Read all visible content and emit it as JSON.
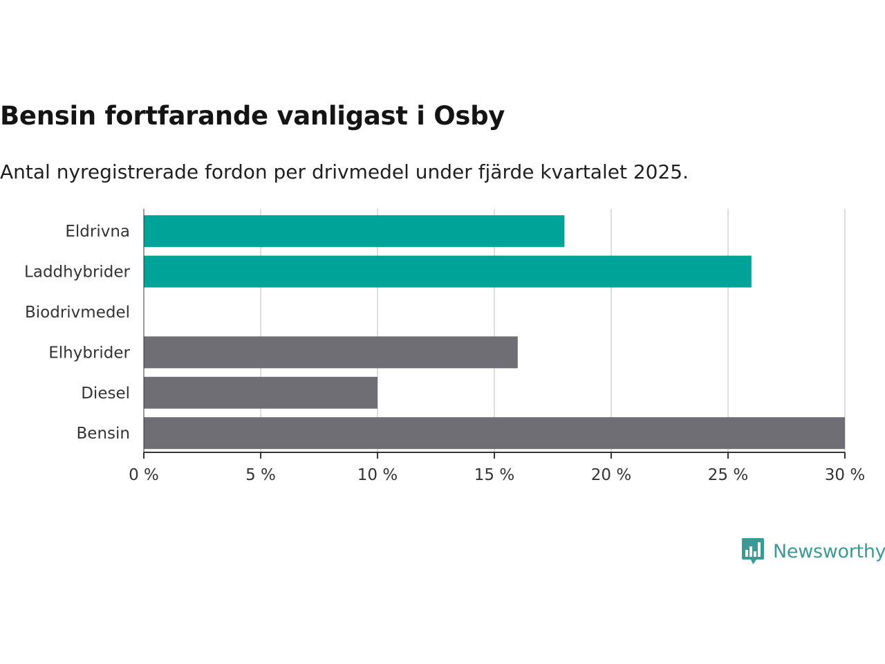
{
  "header": {
    "title": "Bensin fortfarande vanligast i Osby",
    "subtitle": "Antal nyregistrerade fordon per drivmedel under fjärde kvartalet 2025."
  },
  "chart_data": {
    "type": "bar",
    "orientation": "horizontal",
    "categories": [
      "Eldrivna",
      "Laddhybrider",
      "Biodrivmedel",
      "Elhybrider",
      "Diesel",
      "Bensin"
    ],
    "values": [
      18,
      26,
      0,
      16,
      10,
      30
    ],
    "groups": [
      "electric",
      "electric",
      "other",
      "other",
      "other",
      "other"
    ],
    "xlim": [
      0,
      30
    ],
    "xticks": [
      0,
      5,
      10,
      15,
      20,
      25,
      30
    ],
    "tick_suffix": " %",
    "xlabel": "",
    "ylabel": "",
    "grid": true,
    "colors": {
      "electric": "#00a398",
      "other": "#6f6e75",
      "grid": "#dddddd",
      "axis": "#333333"
    }
  },
  "logo": {
    "text": "Newsworthy",
    "icon": "newsworthy-chart-icon",
    "color": "#3b9a94"
  }
}
